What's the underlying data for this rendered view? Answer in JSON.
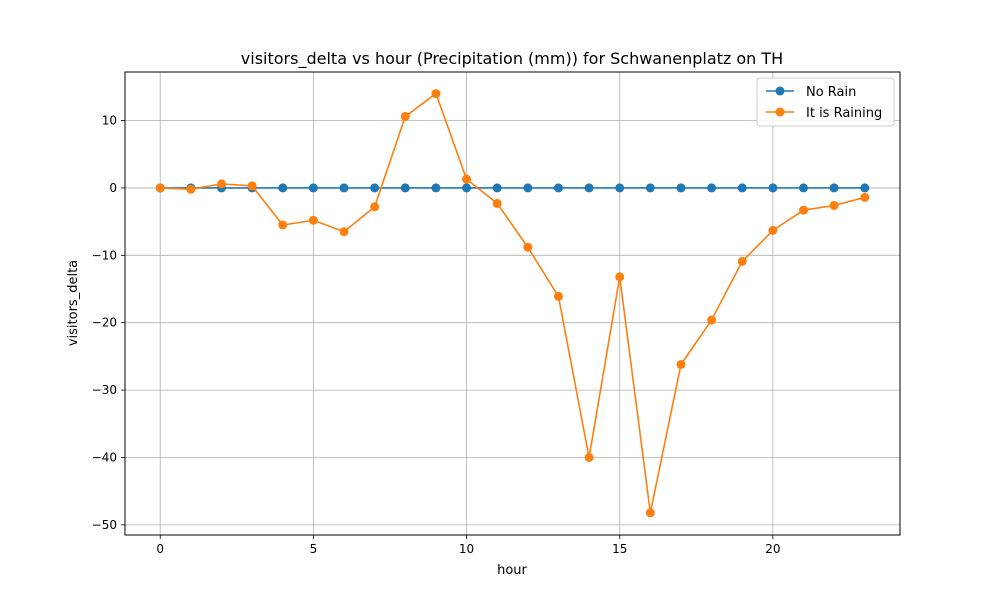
{
  "chart_data": {
    "type": "line",
    "title": "visitors_delta vs hour (Precipitation (mm)) for Schwanenplatz on TH",
    "xlabel": "hour",
    "ylabel": "visitors_delta",
    "xlim": [
      -1.15,
      24.15
    ],
    "ylim": [
      -51.5,
      17.2
    ],
    "xticks": [
      0,
      5,
      10,
      15,
      20
    ],
    "yticks": [
      -50,
      -40,
      -30,
      -20,
      -10,
      0,
      10
    ],
    "ytick_labels": [
      "−50",
      "−40",
      "−30",
      "−20",
      "−10",
      "0",
      "10"
    ],
    "grid": true,
    "legend_position": "top-right",
    "x": [
      0,
      1,
      2,
      3,
      4,
      5,
      6,
      7,
      8,
      9,
      10,
      11,
      12,
      13,
      14,
      15,
      16,
      17,
      18,
      19,
      20,
      21,
      22,
      23
    ],
    "series": [
      {
        "name": "No Rain",
        "color": "#1f77b4",
        "values": [
          0,
          0,
          0,
          0,
          0,
          0,
          0,
          0,
          0,
          0,
          0,
          0,
          0,
          0,
          0,
          0,
          0,
          0,
          0,
          0,
          0,
          0,
          0,
          0
        ]
      },
      {
        "name": "It is Raining",
        "color": "#ff7f0e",
        "values": [
          0,
          -0.2,
          0.6,
          0.3,
          -5.5,
          -4.8,
          -6.5,
          -2.8,
          10.6,
          14.0,
          1.3,
          -2.3,
          -8.8,
          -16.1,
          -40.0,
          -13.2,
          -48.2,
          -26.2,
          -19.6,
          -10.9,
          -6.3,
          -3.3,
          -2.6,
          -1.4
        ]
      }
    ]
  }
}
